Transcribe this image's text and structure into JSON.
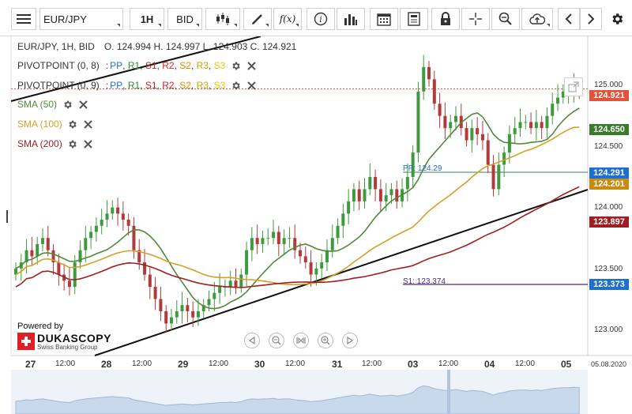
{
  "toolbar": {
    "symbol": "EUR/JPY",
    "period": "1H",
    "side": "BID",
    "fx_label": "f(x)",
    "icons": [
      "menu-icon",
      "candlestick-icon",
      "draw-icon",
      "function-icon",
      "info-icon",
      "bar-chart-icon",
      "calendar-icon",
      "news-icon",
      "lock-icon",
      "crosshair-icon",
      "zoom-icon",
      "cloud-upload-icon",
      "chevron-left-icon",
      "chevron-right-icon",
      "gear-icon"
    ]
  },
  "header": {
    "instrument": "EUR/JPY, 1H, BID",
    "ohlc": "O. 124.994 H. 124.997 L. 124.903 C. 124.921"
  },
  "legends": [
    {
      "name": "PIVOTPOINT (0, 8)",
      "items": [
        "PP",
        "R1",
        "S1",
        "R2",
        "S2",
        "R3",
        "S3"
      ]
    },
    {
      "name": "PIVOTPOINT (0, 9)",
      "items": [
        "PP",
        "R1",
        "S1",
        "R2",
        "S2",
        "R3",
        "S3"
      ]
    },
    {
      "name": "SMA (50)"
    },
    {
      "name": "SMA (100)"
    },
    {
      "name": "SMA (200)"
    }
  ],
  "colors": {
    "PP": "#1f6fd1",
    "R1": "#2e8b2e",
    "S1": "#cc2222",
    "R2": "#cc2222",
    "S2": "#e08a00",
    "R3": "#c9a400",
    "S3": "#e6c800",
    "sma50": "#4e8a3a",
    "sma100": "#d4a02a",
    "sma200": "#9e1f22",
    "bull": "#3f9a3f",
    "bear": "#b33a3a",
    "current": "#e0533a"
  },
  "price_axis": {
    "ticks": [
      "125.000",
      "124.500",
      "124.000",
      "123.500",
      "123.000"
    ],
    "tags": [
      {
        "label": "124.921",
        "color": "#e0533a"
      },
      {
        "label": "124.650",
        "color": "#3b7a2b"
      },
      {
        "label": "124.291",
        "color": "#1e6fd0"
      },
      {
        "label": "124.201",
        "color": "#c98a12"
      },
      {
        "label": "123.897",
        "color": "#9e1f22"
      },
      {
        "label": "123.373",
        "color": "#1e6fd0"
      }
    ]
  },
  "pivot_lines": {
    "pp": "PP: 124.29",
    "s": "S1: 123.374"
  },
  "time_axis": {
    "labels": [
      {
        "t": "27",
        "big": true
      },
      {
        "t": "12:00",
        "big": false
      },
      {
        "t": "28",
        "big": true
      },
      {
        "t": "12:00",
        "big": false
      },
      {
        "t": "29",
        "big": true
      },
      {
        "t": "12:00",
        "big": false
      },
      {
        "t": "30",
        "big": true
      },
      {
        "t": "12:00",
        "big": false
      },
      {
        "t": "31",
        "big": true
      },
      {
        "t": "12:00",
        "big": false
      },
      {
        "t": "03",
        "big": true
      },
      {
        "t": "12:00",
        "big": false
      },
      {
        "t": "04",
        "big": true
      },
      {
        "t": "12:00",
        "big": false
      },
      {
        "t": "05",
        "big": true
      }
    ],
    "date": "05.08.2020"
  },
  "branding": {
    "powered": "Powered by",
    "name": "DUKASCOPY",
    "sub": "Swiss Banking Group"
  },
  "nav_buttons": [
    "rewind-icon",
    "zoom-out-icon",
    "fit-icon",
    "zoom-in-icon",
    "play-icon"
  ],
  "chart_data": {
    "type": "candlestick",
    "symbol": "EUR/JPY",
    "ylim": [
      122.75,
      125.3
    ],
    "closes": [
      123.45,
      123.5,
      123.6,
      123.55,
      123.65,
      123.7,
      123.6,
      123.5,
      123.4,
      123.35,
      123.3,
      123.5,
      123.6,
      123.7,
      123.75,
      123.8,
      123.85,
      123.9,
      123.95,
      123.9,
      123.85,
      123.8,
      123.6,
      123.5,
      123.4,
      123.3,
      123.2,
      123.1,
      123.0,
      123.05,
      123.1,
      123.15,
      123.1,
      123.05,
      123.1,
      123.15,
      123.2,
      123.25,
      123.3,
      123.3,
      123.35,
      123.3,
      123.4,
      123.6,
      123.7,
      123.65,
      123.7,
      123.7,
      123.75,
      123.65,
      123.7,
      123.7,
      123.6,
      123.55,
      123.5,
      123.4,
      123.45,
      123.5,
      123.6,
      123.7,
      123.8,
      123.9,
      124.0,
      124.1,
      124.0,
      124.1,
      124.2,
      124.1,
      124.0,
      124.05,
      124.1,
      124.0,
      124.1,
      124.2,
      124.4,
      124.9,
      125.1,
      125.0,
      124.8,
      124.7,
      124.6,
      124.65,
      124.7,
      124.6,
      124.5,
      124.6,
      124.55,
      124.5,
      124.3,
      124.1,
      124.3,
      124.4,
      124.55,
      124.6,
      124.65,
      124.65,
      124.6,
      124.65,
      124.6,
      124.7,
      124.8,
      124.85,
      124.9,
      124.9,
      124.95,
      124.921
    ]
  }
}
